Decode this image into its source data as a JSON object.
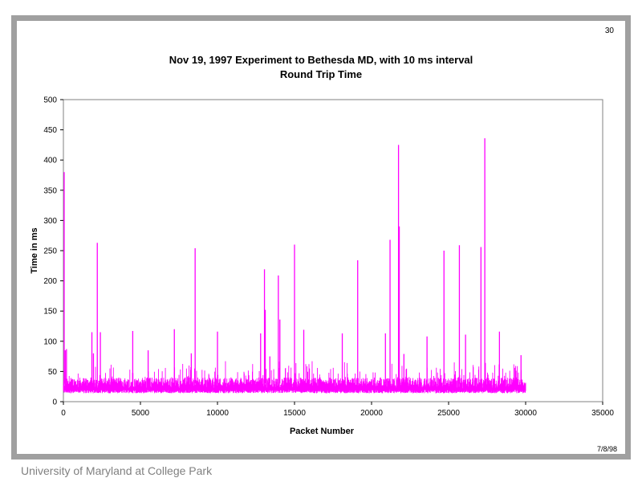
{
  "slide": {
    "number": "30",
    "date_stamp": "7/8/98",
    "footer": "University of Maryland at College Park"
  },
  "chart_data": {
    "type": "line",
    "title": "Nov 19, 1997 Experiment to Bethesda MD, with 10 ms interval",
    "subtitle": "Round Trip Time",
    "xlabel": "Packet Number",
    "ylabel": "Time in ms",
    "xlim": [
      0,
      35000
    ],
    "ylim": [
      0,
      500
    ],
    "x_ticks": [
      0,
      5000,
      10000,
      15000,
      20000,
      25000,
      30000,
      35000
    ],
    "y_ticks": [
      0,
      50,
      100,
      150,
      200,
      250,
      300,
      350,
      400,
      450,
      500
    ],
    "grid": false,
    "legend": "none",
    "series_color": "#ff00ff",
    "series": [
      {
        "baseline_range_ms": [
          14,
          40
        ],
        "packet_range": [
          0,
          30000
        ],
        "x": [
          50,
          120,
          200,
          1850,
          1950,
          2200,
          2400,
          4500,
          5500,
          7200,
          8300,
          8550,
          10000,
          12800,
          13050,
          13100,
          13400,
          13950,
          14050,
          15000,
          15600,
          18100,
          19100,
          20900,
          21200,
          21750,
          21800,
          22100,
          23600,
          24700,
          25700,
          26100,
          27100,
          27350,
          28300,
          29700
        ],
        "values": [
          380,
          85,
          87,
          115,
          80,
          263,
          115,
          117,
          85,
          120,
          80,
          254,
          116,
          113,
          219,
          152,
          75,
          209,
          136,
          260,
          119,
          113,
          234,
          113,
          268,
          425,
          290,
          79,
          108,
          250,
          259,
          111,
          256,
          436,
          116,
          77
        ]
      }
    ]
  }
}
